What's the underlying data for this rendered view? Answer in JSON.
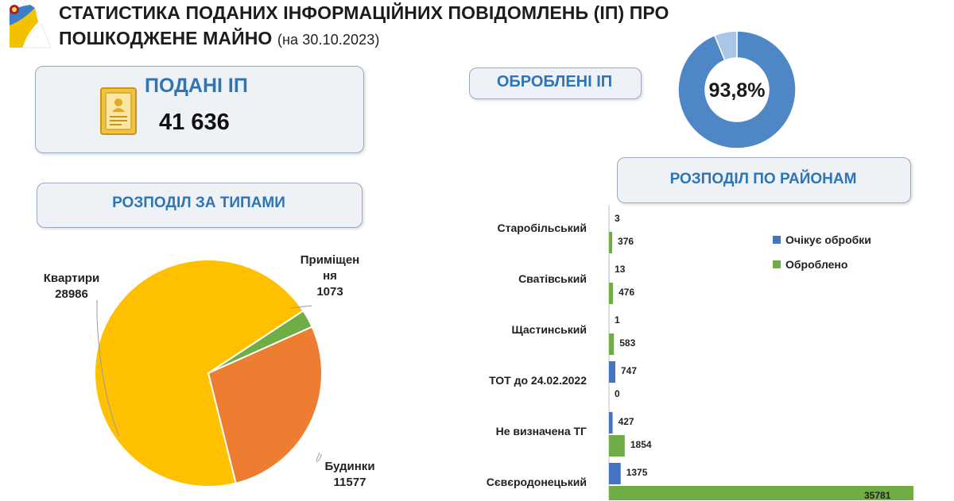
{
  "header": {
    "title_line1": "СТАТИСТИКА ПОДАНИХ ІНФОРМАЦІЙНИХ ПОВІДОМЛЕНЬ (ІП) ПРО",
    "title_line2": "ПОШКОДЖЕНЕ МАЙНО",
    "date": "(на 30.10.2023)"
  },
  "submitted": {
    "label": "ПОДАНІ ІП",
    "value": "41 636",
    "icon": "document-certificate-icon"
  },
  "processed": {
    "label": "ОБРОБЛЕНІ ІП",
    "percent_text": "93,8%",
    "fraction": 0.938
  },
  "types_panel_label": "РОЗПОДІЛ ЗА ТИПАМИ",
  "districts_panel_label": "РОЗПОДІЛ ПО РАЙОНАМ",
  "colors": {
    "accent_blue": "#2f75b5",
    "donut_main": "#4f86c6",
    "donut_rest": "#a9c5e8",
    "pie_apartments": "#ffc000",
    "pie_houses": "#ed7d31",
    "pie_premises": "#70ad47",
    "bar_pending": "#4472c4",
    "bar_processed": "#70ad47"
  },
  "chart_data": [
    {
      "type": "pie",
      "slices": [
        {
          "label_lines": [
            "Квартири"
          ],
          "value": 28986
        },
        {
          "label_lines": [
            "Приміщен",
            "ня"
          ],
          "value": 1073
        },
        {
          "label_lines": [
            "Будинки"
          ],
          "value": 11577
        }
      ]
    },
    {
      "type": "bar",
      "orientation": "horizontal",
      "categories": [
        "Старобільський",
        "Сватівський",
        "Щастинський",
        "ТОТ до 24.02.2022",
        "Не визначена ТГ",
        "Сєвєродонецький"
      ],
      "series": [
        {
          "name": "Очікує обробки",
          "values": [
            3,
            13,
            1,
            747,
            427,
            1375
          ]
        },
        {
          "name": "Оброблено",
          "values": [
            376,
            476,
            583,
            0,
            1854,
            35781
          ]
        }
      ],
      "legend_position": "right"
    }
  ]
}
